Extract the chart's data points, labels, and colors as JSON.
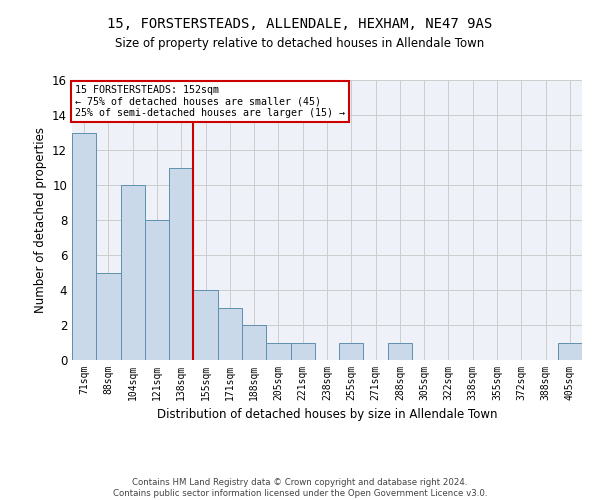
{
  "title1": "15, FORSTERSTEADS, ALLENDALE, HEXHAM, NE47 9AS",
  "title2": "Size of property relative to detached houses in Allendale Town",
  "xlabel": "Distribution of detached houses by size in Allendale Town",
  "ylabel": "Number of detached properties",
  "footer1": "Contains HM Land Registry data © Crown copyright and database right 2024.",
  "footer2": "Contains public sector information licensed under the Open Government Licence v3.0.",
  "annotation_line1": "15 FORSTERSTEADS: 152sqm",
  "annotation_line2": "← 75% of detached houses are smaller (45)",
  "annotation_line3": "25% of semi-detached houses are larger (15) →",
  "bar_labels": [
    "71sqm",
    "88sqm",
    "104sqm",
    "121sqm",
    "138sqm",
    "155sqm",
    "171sqm",
    "188sqm",
    "205sqm",
    "221sqm",
    "238sqm",
    "255sqm",
    "271sqm",
    "288sqm",
    "305sqm",
    "322sqm",
    "338sqm",
    "355sqm",
    "372sqm",
    "388sqm",
    "405sqm"
  ],
  "bar_values": [
    13,
    5,
    10,
    8,
    11,
    4,
    3,
    2,
    1,
    1,
    0,
    1,
    0,
    1,
    0,
    0,
    0,
    0,
    0,
    0,
    1
  ],
  "bar_color": "#c9d9ea",
  "bar_edge_color": "#6090b0",
  "vline_color": "#cc0000",
  "annotation_box_color": "#cc0000",
  "ylim": [
    0,
    16
  ],
  "yticks": [
    0,
    2,
    4,
    6,
    8,
    10,
    12,
    14,
    16
  ],
  "grid_color": "#cccccc",
  "bg_color": "#eef2f8"
}
